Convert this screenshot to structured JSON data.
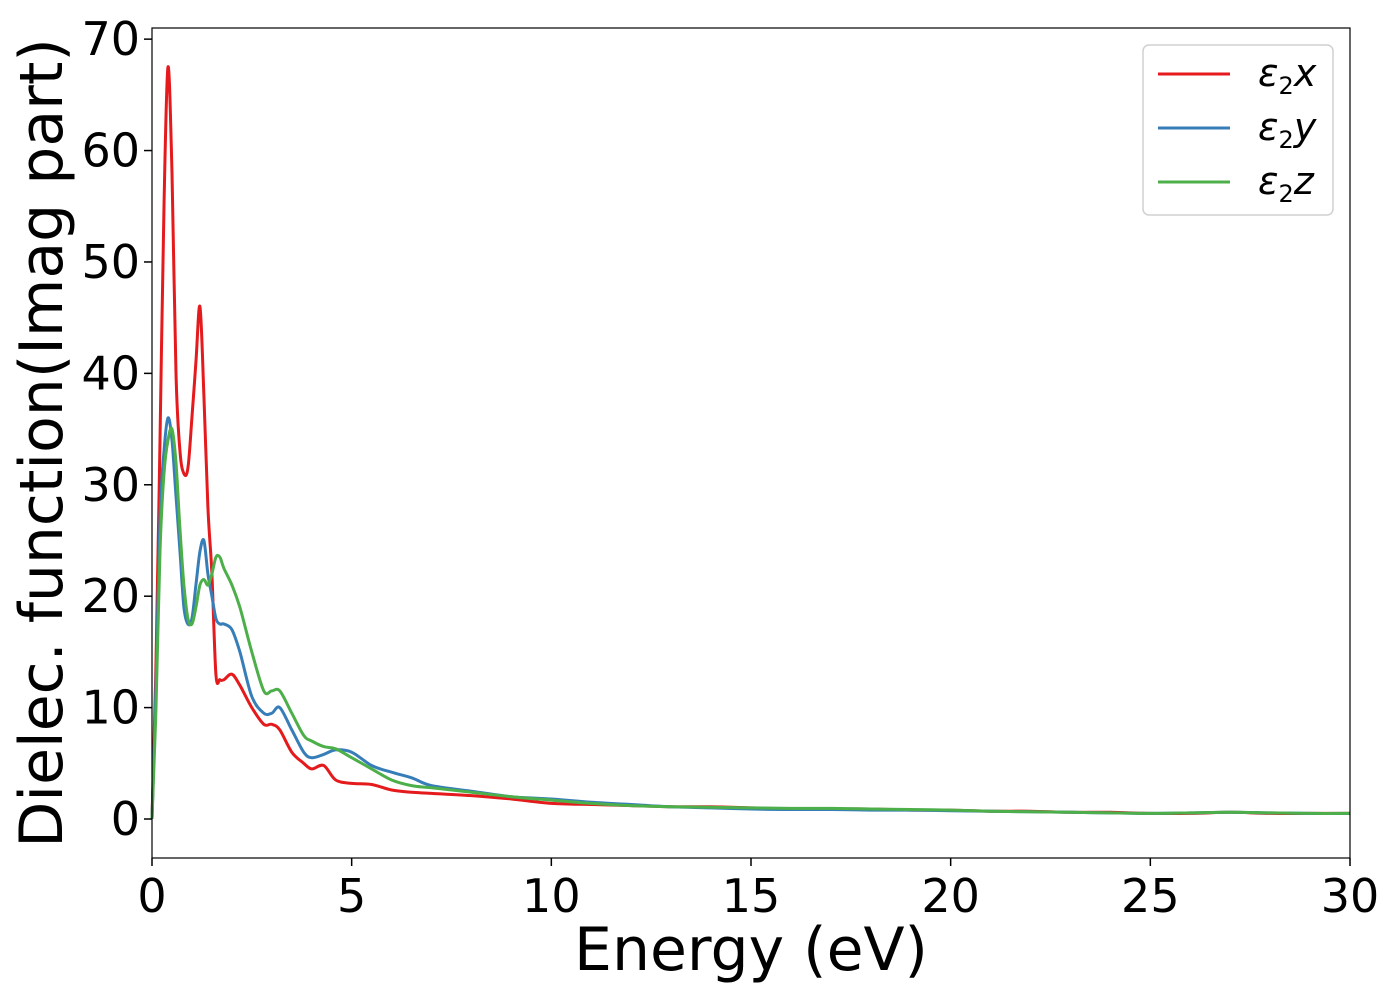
{
  "chart_data": {
    "type": "line",
    "title": "",
    "xlabel": "Energy (eV)",
    "ylabel": "Dielec. function(Imag part)",
    "xlim": [
      0,
      30
    ],
    "ylim": [
      -3.5,
      71
    ],
    "xticks": [
      0,
      5,
      10,
      15,
      20,
      25,
      30
    ],
    "yticks": [
      0,
      10,
      20,
      30,
      40,
      50,
      60,
      70
    ],
    "grid": false,
    "legend_position": "top-right",
    "series": [
      {
        "name": "ε2x",
        "name_base": "ε",
        "name_sub": "2",
        "name_tail": "x",
        "color": "#e41a1c",
        "x": [
          0,
          0.1,
          0.2,
          0.3,
          0.4,
          0.5,
          0.6,
          0.7,
          0.8,
          0.9,
          1.0,
          1.1,
          1.2,
          1.3,
          1.4,
          1.5,
          1.6,
          1.7,
          1.8,
          2.0,
          2.2,
          2.5,
          2.8,
          3.0,
          3.2,
          3.5,
          3.8,
          4.0,
          4.3,
          4.6,
          5.0,
          5.5,
          6.0,
          6.5,
          7.0,
          8.0,
          9.0,
          10.0,
          11.0,
          12.0,
          13.0,
          14.0,
          15.0,
          16.0,
          17.0,
          18.0,
          19.0,
          20.0,
          21.0,
          22.0,
          23.0,
          24.0,
          25.0,
          26.0,
          27.0,
          28.0,
          29.0,
          30.0
        ],
        "values": [
          0,
          14,
          34,
          55,
          67.5,
          58,
          40,
          33,
          31,
          31.5,
          36,
          41,
          46,
          38,
          28,
          22,
          13,
          12.5,
          12.5,
          13,
          12,
          10,
          8.5,
          8.5,
          8,
          6,
          5,
          4.5,
          4.8,
          3.5,
          3.2,
          3.1,
          2.6,
          2.4,
          2.3,
          2.1,
          1.8,
          1.4,
          1.3,
          1.2,
          1.1,
          1.1,
          1.0,
          0.9,
          0.9,
          0.9,
          0.8,
          0.8,
          0.7,
          0.7,
          0.6,
          0.6,
          0.5,
          0.5,
          0.6,
          0.5,
          0.5,
          0.5
        ]
      },
      {
        "name": "ε2y",
        "name_base": "ε",
        "name_sub": "2",
        "name_tail": "y",
        "color": "#377eb8",
        "x": [
          0,
          0.1,
          0.2,
          0.3,
          0.4,
          0.5,
          0.6,
          0.7,
          0.8,
          0.9,
          1.0,
          1.1,
          1.2,
          1.3,
          1.4,
          1.5,
          1.6,
          1.7,
          1.8,
          2.0,
          2.2,
          2.5,
          2.8,
          3.0,
          3.2,
          3.5,
          3.8,
          4.0,
          4.3,
          4.6,
          5.0,
          5.5,
          6.0,
          6.5,
          7.0,
          8.0,
          9.0,
          10.0,
          11.0,
          12.0,
          13.0,
          14.0,
          15.0,
          16.0,
          17.0,
          18.0,
          19.0,
          20.0,
          21.0,
          22.0,
          23.0,
          24.0,
          25.0,
          26.0,
          27.0,
          28.0,
          29.0,
          30.0
        ],
        "values": [
          0,
          12,
          27,
          33,
          36,
          34,
          29,
          24,
          19,
          17.5,
          18,
          21,
          24,
          25,
          22,
          20,
          18,
          17.5,
          17.5,
          17,
          15,
          11,
          9.5,
          9.5,
          10,
          8,
          6,
          5.5,
          5.8,
          6.2,
          6,
          4.8,
          4.2,
          3.7,
          3.0,
          2.5,
          2.0,
          1.8,
          1.5,
          1.3,
          1.1,
          1.0,
          0.9,
          0.85,
          0.85,
          0.8,
          0.8,
          0.75,
          0.7,
          0.65,
          0.6,
          0.55,
          0.5,
          0.55,
          0.6,
          0.55,
          0.5,
          0.5
        ]
      },
      {
        "name": "ε2z",
        "name_base": "ε",
        "name_sub": "2",
        "name_tail": "z",
        "color": "#4daf4a",
        "x": [
          0,
          0.1,
          0.2,
          0.3,
          0.4,
          0.5,
          0.6,
          0.7,
          0.8,
          0.9,
          1.0,
          1.1,
          1.2,
          1.3,
          1.4,
          1.5,
          1.6,
          1.7,
          1.8,
          2.0,
          2.2,
          2.5,
          2.8,
          3.0,
          3.2,
          3.5,
          3.8,
          4.0,
          4.3,
          4.6,
          5.0,
          5.5,
          6.0,
          6.5,
          7.0,
          8.0,
          9.0,
          10.0,
          11.0,
          12.0,
          13.0,
          14.0,
          15.0,
          16.0,
          17.0,
          18.0,
          19.0,
          20.0,
          21.0,
          22.0,
          23.0,
          24.0,
          25.0,
          26.0,
          27.0,
          28.0,
          29.0,
          30.0
        ],
        "values": [
          0,
          10,
          24,
          31,
          34,
          35,
          32,
          26,
          21,
          18,
          17.5,
          19,
          21,
          21.5,
          21,
          22,
          23.5,
          23.5,
          22.5,
          21,
          19,
          15,
          11.5,
          11.5,
          11.5,
          9.5,
          7.5,
          7,
          6.5,
          6.3,
          5.5,
          4.5,
          3.5,
          3.0,
          2.8,
          2.4,
          2.0,
          1.7,
          1.4,
          1.2,
          1.1,
          1.05,
          1.0,
          0.95,
          0.95,
          0.9,
          0.85,
          0.8,
          0.7,
          0.65,
          0.6,
          0.55,
          0.5,
          0.55,
          0.6,
          0.55,
          0.5,
          0.5
        ]
      }
    ]
  }
}
